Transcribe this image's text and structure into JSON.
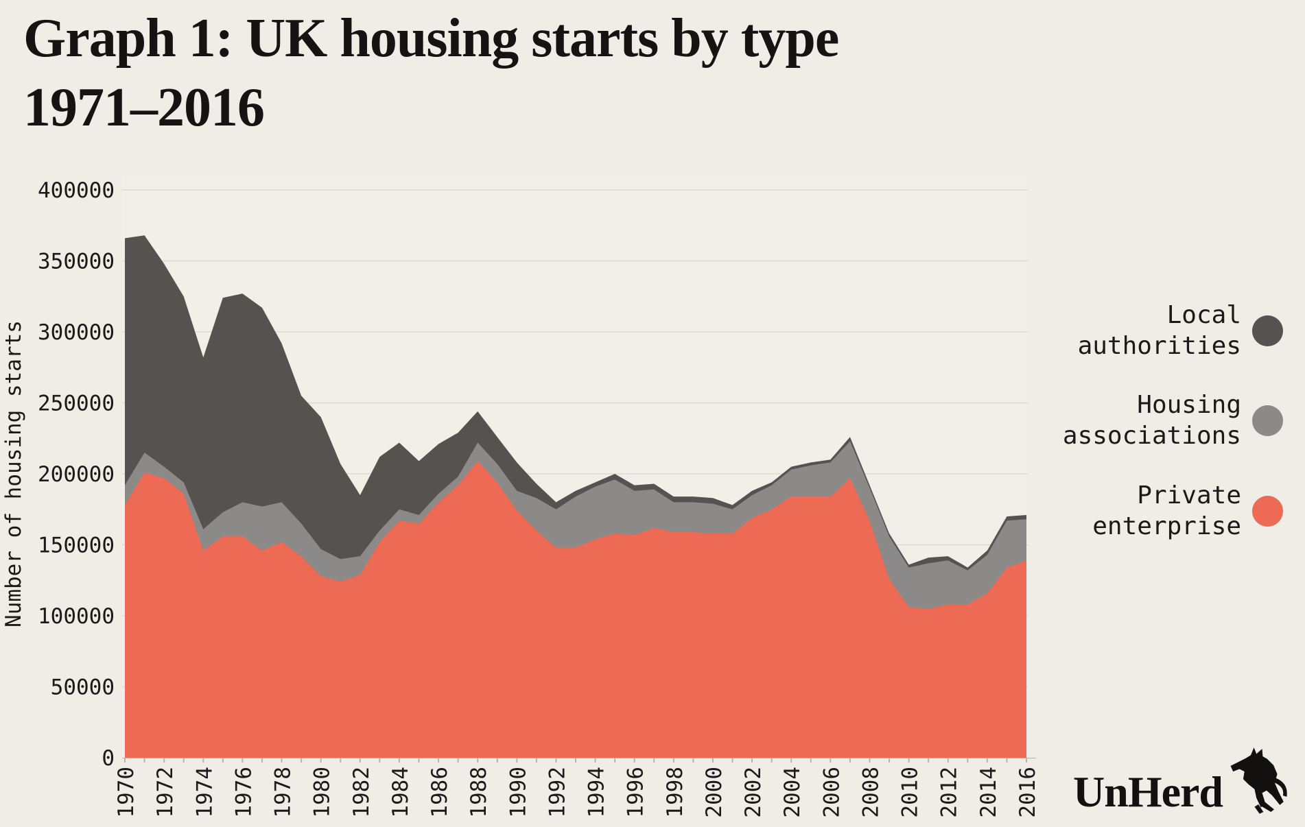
{
  "title": {
    "line1": "Graph 1: UK housing starts by type",
    "line2": "1971–2016"
  },
  "y_axis": {
    "label": "Number of housing starts",
    "tick_labels": [
      "0",
      "50000",
      "100000",
      "150000",
      "200000",
      "250000",
      "300000",
      "350000",
      "400000"
    ],
    "tick_values": [
      0,
      50000,
      100000,
      150000,
      200000,
      250000,
      300000,
      350000,
      400000
    ]
  },
  "x_axis": {
    "tick_labels": [
      "1970",
      "1972",
      "1974",
      "1976",
      "1978",
      "1980",
      "1982",
      "1984",
      "1986",
      "1988",
      "1990",
      "1992",
      "1994",
      "1996",
      "1998",
      "2000",
      "2002",
      "2004",
      "2006",
      "2008",
      "2010",
      "2012",
      "2014",
      "2016"
    ]
  },
  "legend": [
    {
      "line1": "Local",
      "line2": "authorities",
      "color": "#555250",
      "icon": "legend-dot"
    },
    {
      "line1": "Housing",
      "line2": "associations",
      "color": "#8b8a88",
      "icon": "legend-dot"
    },
    {
      "line1": "Private",
      "line2": "enterprise",
      "color": "#ed6a55",
      "icon": "legend-dot"
    }
  ],
  "brand": {
    "name": "UnHerd",
    "icon": "cow-icon"
  },
  "colors": {
    "background": "#f0ece6",
    "plot_background": "#f2efe9",
    "gridline": "#dcd8d2",
    "axis_tick": "#b7b3ad",
    "text": "#1b1a19",
    "private_enterprise": "#ed6a55",
    "housing_associations": "#8b8a88",
    "local_authorities": "#555250"
  },
  "chart_data": {
    "type": "area",
    "stacked": true,
    "title": "Graph 1: UK housing starts by type 1971–2016",
    "ylabel": "Number of housing starts",
    "ylim": [
      0,
      400000
    ],
    "grid": true,
    "legend_position": "right",
    "x": [
      1970,
      1971,
      1972,
      1973,
      1974,
      1975,
      1976,
      1977,
      1978,
      1979,
      1980,
      1981,
      1982,
      1983,
      1984,
      1985,
      1986,
      1987,
      1988,
      1989,
      1990,
      1991,
      1992,
      1993,
      1994,
      1995,
      1996,
      1997,
      1998,
      1999,
      2000,
      2001,
      2002,
      2003,
      2004,
      2005,
      2006,
      2007,
      2008,
      2009,
      2010,
      2011,
      2012,
      2013,
      2014,
      2015,
      2016
    ],
    "series": [
      {
        "name": "Private enterprise",
        "color": "#ed6a55",
        "values": [
          178000,
          201000,
          197000,
          186000,
          146000,
          156000,
          156000,
          146000,
          152000,
          142000,
          128000,
          124000,
          129000,
          152000,
          167000,
          165000,
          180000,
          192000,
          209000,
          194000,
          174000,
          160000,
          148000,
          148000,
          154000,
          158000,
          157000,
          162000,
          159000,
          159000,
          158000,
          158000,
          169000,
          175000,
          184000,
          184000,
          184000,
          197000,
          167000,
          126000,
          106000,
          105000,
          108000,
          108000,
          116000,
          134000,
          139000
        ]
      },
      {
        "name": "Housing associations",
        "color": "#8b8a88",
        "values": [
          14000,
          14000,
          8000,
          8000,
          15000,
          17000,
          24000,
          31000,
          28000,
          23000,
          19000,
          16000,
          13000,
          8000,
          8000,
          6000,
          6000,
          6000,
          13000,
          13000,
          14000,
          23000,
          27000,
          36000,
          37000,
          38000,
          31000,
          27000,
          21000,
          21000,
          21000,
          17000,
          16000,
          17000,
          19000,
          22000,
          24000,
          26000,
          23000,
          30000,
          28000,
          32000,
          31000,
          24000,
          27000,
          33000,
          29000
        ]
      },
      {
        "name": "Local authorities",
        "color": "#555250",
        "values": [
          174000,
          153000,
          143000,
          131000,
          121000,
          151000,
          147000,
          140000,
          112000,
          90000,
          93000,
          67000,
          43000,
          52000,
          47000,
          38000,
          35000,
          31000,
          22000,
          19000,
          20000,
          10000,
          5000,
          4000,
          3000,
          4000,
          4000,
          4000,
          4000,
          4000,
          4000,
          3000,
          3000,
          2000,
          2000,
          2000,
          2000,
          3000,
          2000,
          2000,
          2000,
          4000,
          3000,
          2000,
          3000,
          3000,
          3000
        ]
      }
    ]
  },
  "geometry_note": "plot area x 178-1498, y 277 (400000) to 1105 (0)"
}
